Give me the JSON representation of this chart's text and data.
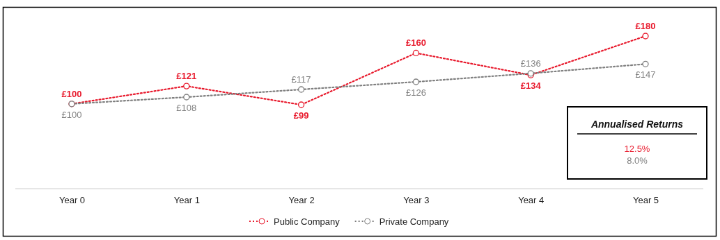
{
  "chart_data": {
    "type": "line",
    "categories": [
      "Year 0",
      "Year 1",
      "Year 2",
      "Year 3",
      "Year 4",
      "Year 5"
    ],
    "series": [
      {
        "name": "Public Company",
        "color": "#e8192c",
        "values": [
          100,
          121,
          99,
          160,
          134,
          180
        ],
        "value_labels": [
          "£100",
          "£121",
          "£99",
          "£160",
          "£134",
          "£180"
        ]
      },
      {
        "name": "Private Company",
        "color": "#7f7f7f",
        "values": [
          100,
          108,
          117,
          126,
          136,
          147
        ],
        "value_labels": [
          "£100",
          "£108",
          "£117",
          "£126",
          "£136",
          "£147"
        ]
      }
    ],
    "marker": "circle",
    "line_style": "dotted",
    "legend": "bottom",
    "annotations": [
      "Annualised Returns",
      "12.5%",
      "8.0%"
    ]
  }
}
